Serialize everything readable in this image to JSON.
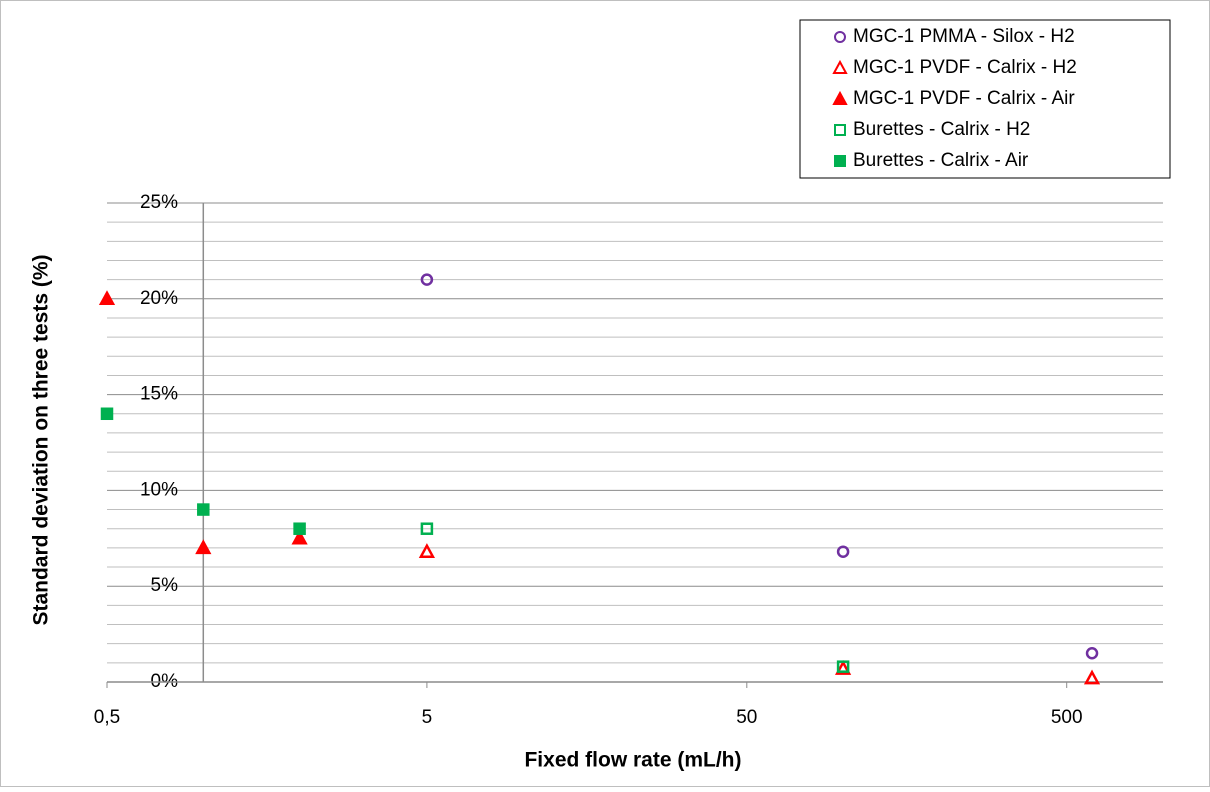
{
  "chart_data": {
    "type": "scatter",
    "xlabel": "Fixed flow rate (mL/h)",
    "ylabel": "Standard deviation on three tests (%)",
    "xscale": "log",
    "xlim": [
      0.5,
      1000
    ],
    "xticks": [
      {
        "value": 0.5,
        "label": "0,5"
      },
      5,
      50,
      500
    ],
    "ylim": [
      0,
      25
    ],
    "yticks": [
      {
        "value": 0,
        "label": "0%"
      },
      {
        "value": 5,
        "label": "5%"
      },
      {
        "value": 10,
        "label": "10%"
      },
      {
        "value": 15,
        "label": "15%"
      },
      {
        "value": 20,
        "label": "20%"
      },
      {
        "value": 25,
        "label": "25%"
      }
    ],
    "minor_yticks": [
      1,
      2,
      3,
      4,
      6,
      7,
      8,
      9,
      11,
      12,
      13,
      14,
      16,
      17,
      18,
      19,
      21,
      22,
      23,
      24
    ],
    "grid": true,
    "y_axis_crosses_x": 1,
    "legend": "top-right",
    "series": [
      {
        "name": "MGC-1 PMMA - Silox - H2",
        "color": "#7030a0",
        "marker": "circle",
        "filled": false,
        "x": [
          5,
          100,
          600
        ],
        "values": [
          21,
          6.8,
          1.5
        ]
      },
      {
        "name": "MGC-1 PVDF - Calrix - H2",
        "color": "#ff0000",
        "marker": "triangle",
        "filled": false,
        "x": [
          5,
          100,
          600
        ],
        "values": [
          6.8,
          0.7,
          0.2
        ]
      },
      {
        "name": "MGC-1 PVDF - Calrix - Air",
        "color": "#ff0000",
        "marker": "triangle",
        "filled": true,
        "x": [
          0.5,
          1,
          2
        ],
        "values": [
          20,
          7,
          7.5
        ]
      },
      {
        "name": "Burettes - Calrix - H2",
        "color": "#00b050",
        "marker": "square",
        "filled": false,
        "x": [
          5,
          100
        ],
        "values": [
          8,
          0.8
        ]
      },
      {
        "name": "Burettes - Calrix - Air",
        "color": "#00b050",
        "marker": "square",
        "filled": true,
        "x": [
          0.5,
          1,
          2
        ],
        "values": [
          14,
          9,
          8
        ]
      }
    ]
  }
}
